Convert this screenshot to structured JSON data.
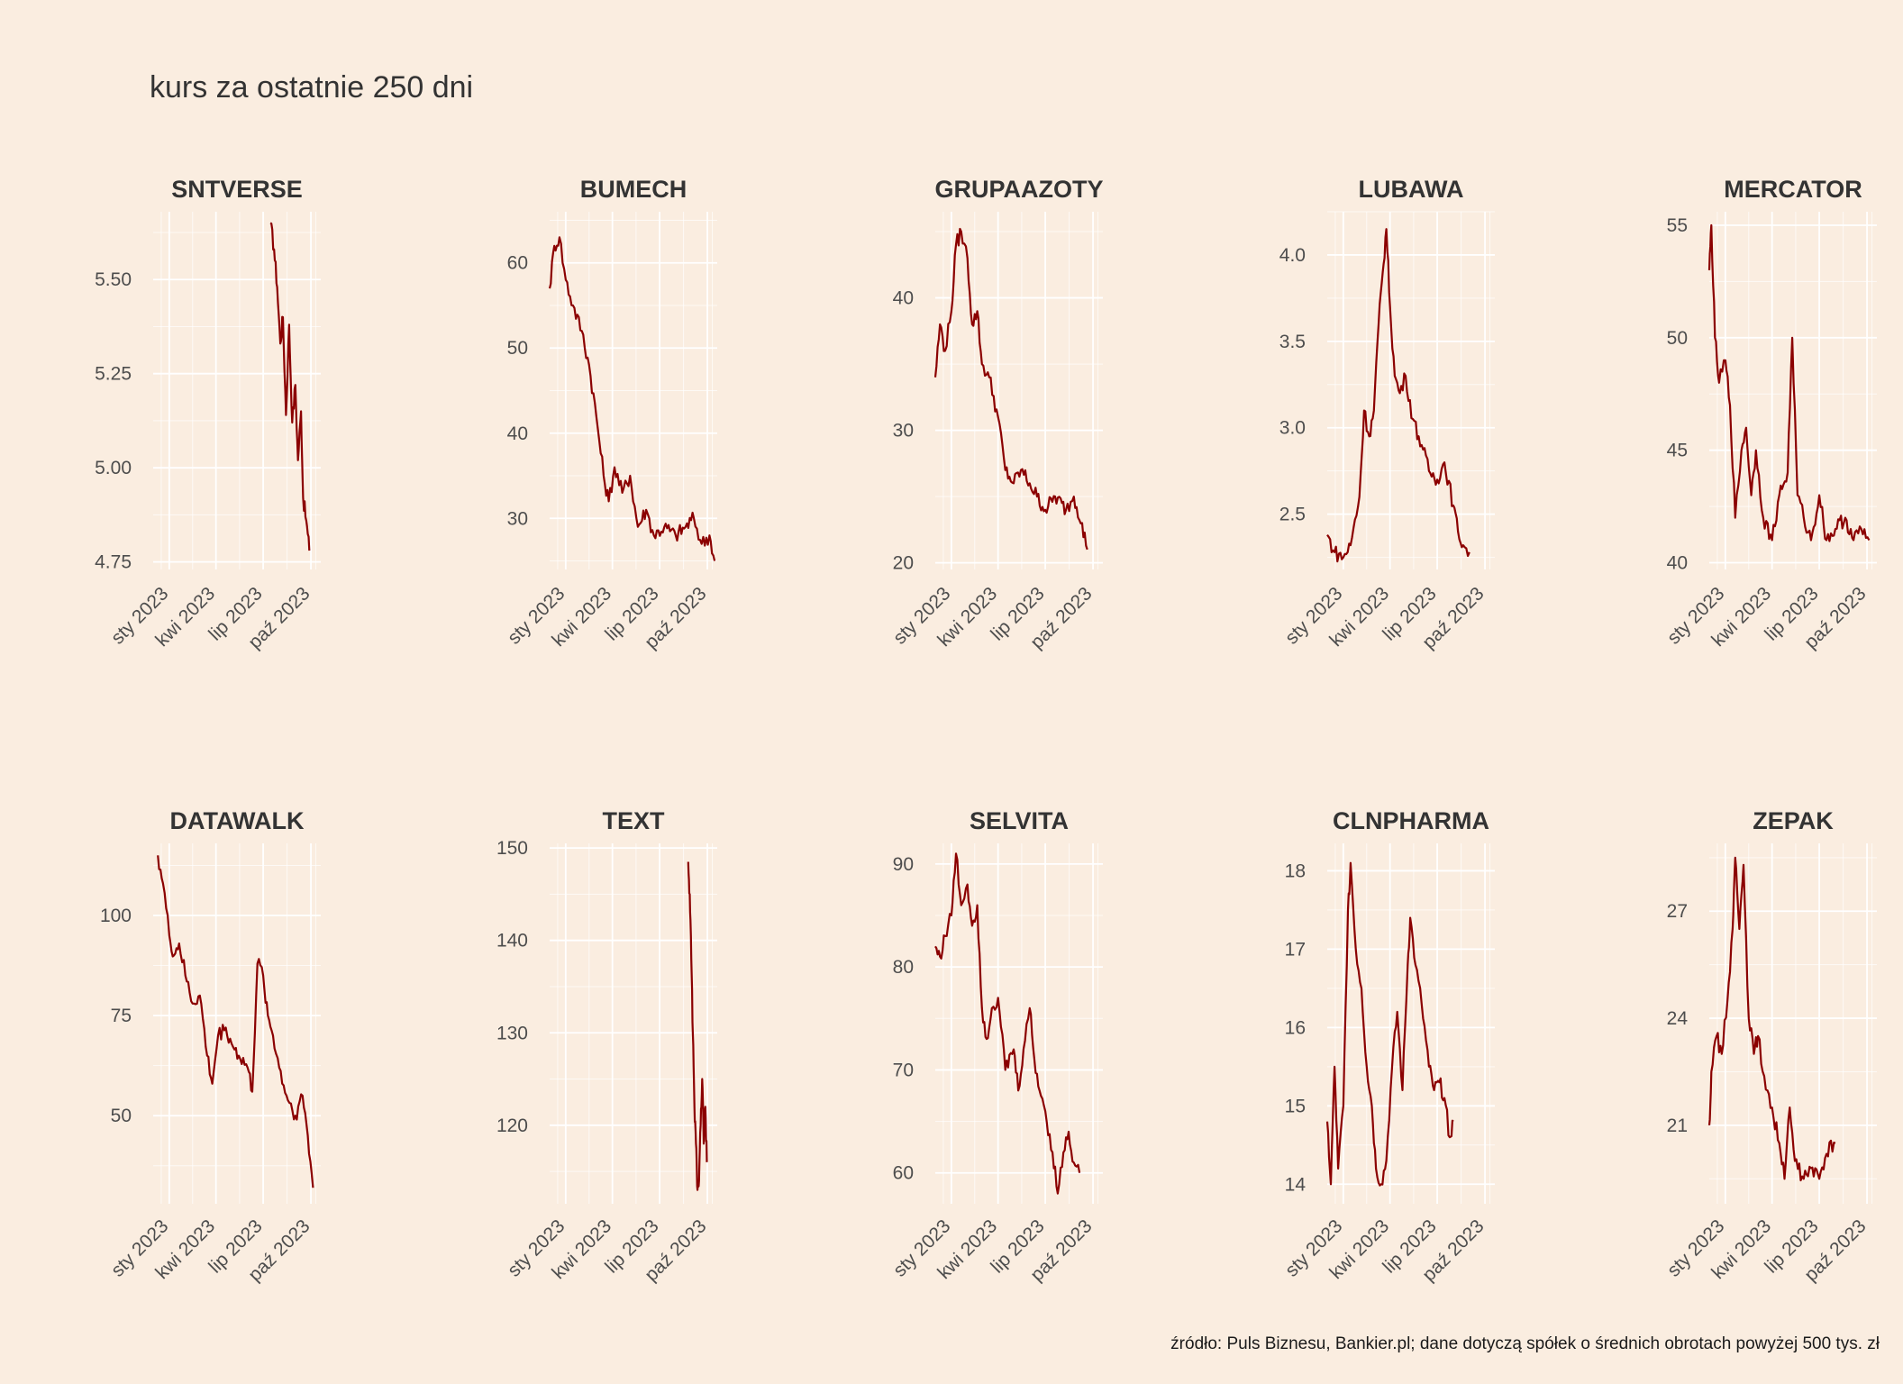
{
  "title": "kurs za ostatnie 250 dni",
  "caption": "źródło: Puls Biznesu, Bankier.pl; dane dotyczą spółek o średnich obrotach powyżej 500 tys. zł",
  "colors": {
    "background": "#FAEDE0",
    "line": "#8B0000",
    "grid": "#FFFFFF",
    "text": "#4D4D4D"
  },
  "chart_data": [
    {
      "type": "line",
      "title": "SNTVERSE",
      "x_ticks": [
        "sty 2023",
        "kwi 2023",
        "lip 2023",
        "paź 2023"
      ],
      "x_tick_dates": [
        "2023-01-01",
        "2023-04-01",
        "2023-07-01",
        "2023-10-01"
      ],
      "y_ticks": [
        4.75,
        5.0,
        5.25,
        5.5
      ],
      "y_tick_labels": [
        "4.75",
        "5.00",
        "5.25",
        "5.50"
      ],
      "ylim": [
        4.73,
        5.68
      ],
      "points": [
        [
          "2023-07-15",
          5.65
        ],
        [
          "2023-07-22",
          5.58
        ],
        [
          "2023-07-28",
          5.48
        ],
        [
          "2023-08-03",
          5.33
        ],
        [
          "2023-08-08",
          5.4
        ],
        [
          "2023-08-14",
          5.14
        ],
        [
          "2023-08-20",
          5.38
        ],
        [
          "2023-08-26",
          5.12
        ],
        [
          "2023-09-01",
          5.22
        ],
        [
          "2023-09-06",
          5.02
        ],
        [
          "2023-09-12",
          5.15
        ],
        [
          "2023-09-16",
          4.92
        ],
        [
          "2023-09-22",
          4.86
        ],
        [
          "2023-09-28",
          4.78
        ]
      ]
    },
    {
      "type": "line",
      "title": "BUMECH",
      "x_ticks": [
        "sty 2023",
        "kwi 2023",
        "lip 2023",
        "paź 2023"
      ],
      "x_tick_dates": [
        "2023-01-01",
        "2023-04-01",
        "2023-07-01",
        "2023-10-01"
      ],
      "y_ticks": [
        30,
        40,
        50,
        60
      ],
      "y_tick_labels": [
        "30",
        "40",
        "50",
        "60"
      ],
      "ylim": [
        24,
        66
      ],
      "points": [
        [
          "2022-12-01",
          57
        ],
        [
          "2022-12-10",
          62
        ],
        [
          "2022-12-20",
          63
        ],
        [
          "2023-01-01",
          58
        ],
        [
          "2023-01-15",
          55
        ],
        [
          "2023-02-01",
          52
        ],
        [
          "2023-02-15",
          48
        ],
        [
          "2023-03-01",
          42
        ],
        [
          "2023-03-15",
          35
        ],
        [
          "2023-03-25",
          32
        ],
        [
          "2023-04-05",
          36
        ],
        [
          "2023-04-20",
          33
        ],
        [
          "2023-05-05",
          35
        ],
        [
          "2023-05-20",
          29
        ],
        [
          "2023-06-05",
          31
        ],
        [
          "2023-06-20",
          28
        ],
        [
          "2023-07-10",
          29
        ],
        [
          "2023-08-01",
          28
        ],
        [
          "2023-08-20",
          29
        ],
        [
          "2023-09-05",
          30
        ],
        [
          "2023-09-20",
          27
        ],
        [
          "2023-10-05",
          28
        ],
        [
          "2023-10-15",
          25
        ]
      ]
    },
    {
      "type": "line",
      "title": "GRUPAAZOTY",
      "x_ticks": [
        "sty 2023",
        "kwi 2023",
        "lip 2023",
        "paź 2023"
      ],
      "x_tick_dates": [
        "2023-01-01",
        "2023-04-01",
        "2023-07-01",
        "2023-10-01"
      ],
      "y_ticks": [
        20,
        30,
        40
      ],
      "y_tick_labels": [
        "20",
        "30",
        "40"
      ],
      "ylim": [
        19.5,
        46.5
      ],
      "points": [
        [
          "2022-12-01",
          34
        ],
        [
          "2022-12-10",
          38
        ],
        [
          "2022-12-20",
          36
        ],
        [
          "2023-01-01",
          39
        ],
        [
          "2023-01-10",
          44
        ],
        [
          "2023-01-20",
          45
        ],
        [
          "2023-02-01",
          43
        ],
        [
          "2023-02-10",
          38
        ],
        [
          "2023-02-20",
          39
        ],
        [
          "2023-03-01",
          35
        ],
        [
          "2023-03-15",
          34
        ],
        [
          "2023-04-01",
          31
        ],
        [
          "2023-04-15",
          27
        ],
        [
          "2023-05-01",
          26
        ],
        [
          "2023-05-15",
          27
        ],
        [
          "2023-06-01",
          26
        ],
        [
          "2023-06-15",
          25
        ],
        [
          "2023-07-01",
          24
        ],
        [
          "2023-07-20",
          25
        ],
        [
          "2023-08-10",
          24
        ],
        [
          "2023-08-25",
          25
        ],
        [
          "2023-09-10",
          23
        ],
        [
          "2023-09-20",
          21
        ]
      ]
    },
    {
      "type": "line",
      "title": "LUBAWA",
      "x_ticks": [
        "sty 2023",
        "kwi 2023",
        "lip 2023",
        "paź 2023"
      ],
      "x_tick_dates": [
        "2023-01-01",
        "2023-04-01",
        "2023-07-01",
        "2023-10-01"
      ],
      "y_ticks": [
        2.5,
        3.0,
        3.5,
        4.0
      ],
      "y_tick_labels": [
        "2.5",
        "3.0",
        "3.5",
        "4.0"
      ],
      "ylim": [
        2.18,
        4.25
      ],
      "points": [
        [
          "2022-12-01",
          2.38
        ],
        [
          "2022-12-15",
          2.28
        ],
        [
          "2023-01-01",
          2.25
        ],
        [
          "2023-01-15",
          2.32
        ],
        [
          "2023-02-01",
          2.6
        ],
        [
          "2023-02-10",
          3.1
        ],
        [
          "2023-02-20",
          2.95
        ],
        [
          "2023-03-01",
          3.1
        ],
        [
          "2023-03-10",
          3.6
        ],
        [
          "2023-03-18",
          3.9
        ],
        [
          "2023-03-25",
          4.15
        ],
        [
          "2023-04-01",
          3.7
        ],
        [
          "2023-04-10",
          3.3
        ],
        [
          "2023-04-20",
          3.2
        ],
        [
          "2023-05-01",
          3.3
        ],
        [
          "2023-05-15",
          3.05
        ],
        [
          "2023-06-01",
          2.9
        ],
        [
          "2023-06-15",
          2.75
        ],
        [
          "2023-07-01",
          2.7
        ],
        [
          "2023-07-15",
          2.8
        ],
        [
          "2023-08-01",
          2.55
        ],
        [
          "2023-08-10",
          2.4
        ],
        [
          "2023-08-20",
          2.32
        ],
        [
          "2023-09-01",
          2.28
        ]
      ]
    },
    {
      "type": "line",
      "title": "MERCATOR",
      "x_ticks": [
        "sty 2023",
        "kwi 2023",
        "lip 2023",
        "paź 2023"
      ],
      "x_tick_dates": [
        "2023-01-01",
        "2023-04-01",
        "2023-07-01",
        "2023-10-01"
      ],
      "y_ticks": [
        40,
        45,
        50,
        55
      ],
      "y_tick_labels": [
        "40",
        "45",
        "50",
        "55"
      ],
      "ylim": [
        39.7,
        55.6
      ],
      "points": [
        [
          "2022-12-01",
          53
        ],
        [
          "2022-12-05",
          55
        ],
        [
          "2022-12-12",
          50
        ],
        [
          "2022-12-20",
          48
        ],
        [
          "2023-01-01",
          49
        ],
        [
          "2023-01-10",
          47
        ],
        [
          "2023-01-20",
          42
        ],
        [
          "2023-02-01",
          45
        ],
        [
          "2023-02-10",
          46
        ],
        [
          "2023-02-20",
          43
        ],
        [
          "2023-03-01",
          45
        ],
        [
          "2023-03-15",
          42
        ],
        [
          "2023-04-01",
          41
        ],
        [
          "2023-04-15",
          43
        ],
        [
          "2023-05-01",
          44
        ],
        [
          "2023-05-10",
          50
        ],
        [
          "2023-05-20",
          43
        ],
        [
          "2023-06-01",
          42
        ],
        [
          "2023-06-15",
          41
        ],
        [
          "2023-07-01",
          43
        ],
        [
          "2023-07-15",
          41
        ],
        [
          "2023-08-01",
          41.5
        ],
        [
          "2023-08-20",
          42
        ],
        [
          "2023-09-05",
          41
        ],
        [
          "2023-09-20",
          41.5
        ],
        [
          "2023-10-05",
          41
        ]
      ]
    },
    {
      "type": "line",
      "title": "DATAWALK",
      "x_ticks": [
        "sty 2023",
        "kwi 2023",
        "lip 2023",
        "paź 2023"
      ],
      "x_tick_dates": [
        "2023-01-01",
        "2023-04-01",
        "2023-07-01",
        "2023-10-01"
      ],
      "y_ticks": [
        50,
        75,
        100
      ],
      "y_tick_labels": [
        "50",
        "75",
        "100"
      ],
      "ylim": [
        28,
        118
      ],
      "points": [
        [
          "2022-12-10",
          115
        ],
        [
          "2022-12-20",
          108
        ],
        [
          "2023-01-01",
          95
        ],
        [
          "2023-01-10",
          90
        ],
        [
          "2023-01-20",
          93
        ],
        [
          "2023-02-01",
          85
        ],
        [
          "2023-02-15",
          78
        ],
        [
          "2023-03-01",
          80
        ],
        [
          "2023-03-15",
          65
        ],
        [
          "2023-03-25",
          58
        ],
        [
          "2023-04-05",
          70
        ],
        [
          "2023-04-20",
          72
        ],
        [
          "2023-05-01",
          68
        ],
        [
          "2023-05-15",
          65
        ],
        [
          "2023-06-01",
          62
        ],
        [
          "2023-06-10",
          56
        ],
        [
          "2023-06-20",
          88
        ],
        [
          "2023-07-01",
          85
        ],
        [
          "2023-07-10",
          75
        ],
        [
          "2023-07-20",
          70
        ],
        [
          "2023-08-01",
          62
        ],
        [
          "2023-08-15",
          55
        ],
        [
          "2023-09-01",
          50
        ],
        [
          "2023-09-15",
          55
        ],
        [
          "2023-09-25",
          45
        ],
        [
          "2023-10-05",
          32
        ]
      ]
    },
    {
      "type": "line",
      "title": "TEXT",
      "x_ticks": [
        "sty 2023",
        "kwi 2023",
        "lip 2023",
        "paź 2023"
      ],
      "x_tick_dates": [
        "2023-01-01",
        "2023-04-01",
        "2023-07-01",
        "2023-10-01"
      ],
      "y_ticks": [
        120,
        130,
        140,
        150
      ],
      "y_tick_labels": [
        "120",
        "130",
        "140",
        "150"
      ],
      "ylim": [
        111.5,
        150.5
      ],
      "points": [
        [
          "2023-08-25",
          148.5
        ],
        [
          "2023-08-28",
          145
        ],
        [
          "2023-08-31",
          138
        ],
        [
          "2023-09-03",
          130
        ],
        [
          "2023-09-06",
          122
        ],
        [
          "2023-09-09",
          118
        ],
        [
          "2023-09-12",
          113
        ],
        [
          "2023-09-15",
          114
        ],
        [
          "2023-09-18",
          120
        ],
        [
          "2023-09-21",
          125
        ],
        [
          "2023-09-24",
          118
        ],
        [
          "2023-09-27",
          122
        ],
        [
          "2023-09-30",
          116
        ]
      ]
    },
    {
      "type": "line",
      "title": "SELVITA",
      "x_ticks": [
        "sty 2023",
        "kwi 2023",
        "lip 2023",
        "paź 2023"
      ],
      "x_tick_dates": [
        "2023-01-01",
        "2023-04-01",
        "2023-07-01",
        "2023-10-01"
      ],
      "y_ticks": [
        60,
        70,
        80,
        90
      ],
      "y_tick_labels": [
        "60",
        "70",
        "80",
        "90"
      ],
      "ylim": [
        57,
        92
      ],
      "points": [
        [
          "2022-12-01",
          82
        ],
        [
          "2022-12-10",
          81
        ],
        [
          "2022-12-20",
          83
        ],
        [
          "2023-01-01",
          85
        ],
        [
          "2023-01-10",
          91
        ],
        [
          "2023-01-20",
          86
        ],
        [
          "2023-02-01",
          88
        ],
        [
          "2023-02-10",
          84
        ],
        [
          "2023-02-20",
          86
        ],
        [
          "2023-03-01",
          76
        ],
        [
          "2023-03-10",
          73
        ],
        [
          "2023-03-20",
          76
        ],
        [
          "2023-04-01",
          77
        ],
        [
          "2023-04-15",
          70
        ],
        [
          "2023-05-01",
          72
        ],
        [
          "2023-05-10",
          68
        ],
        [
          "2023-05-20",
          72
        ],
        [
          "2023-06-01",
          76
        ],
        [
          "2023-06-10",
          71
        ],
        [
          "2023-06-20",
          68
        ],
        [
          "2023-07-01",
          66
        ],
        [
          "2023-07-15",
          62
        ],
        [
          "2023-07-25",
          58
        ],
        [
          "2023-08-05",
          62
        ],
        [
          "2023-08-15",
          64
        ],
        [
          "2023-08-25",
          61
        ],
        [
          "2023-09-05",
          60
        ]
      ]
    },
    {
      "type": "line",
      "title": "CLNPHARMA",
      "x_ticks": [
        "sty 2023",
        "kwi 2023",
        "lip 2023",
        "paź 2023"
      ],
      "x_tick_dates": [
        "2023-01-01",
        "2023-04-01",
        "2023-07-01",
        "2023-10-01"
      ],
      "y_ticks": [
        14,
        15,
        16,
        17,
        18
      ],
      "y_tick_labels": [
        "14",
        "15",
        "16",
        "17",
        "18"
      ],
      "ylim": [
        13.75,
        18.35
      ],
      "points": [
        [
          "2022-12-01",
          14.8
        ],
        [
          "2022-12-08",
          14.0
        ],
        [
          "2022-12-15",
          15.5
        ],
        [
          "2022-12-22",
          14.2
        ],
        [
          "2023-01-01",
          15.0
        ],
        [
          "2023-01-10",
          17.5
        ],
        [
          "2023-01-15",
          18.1
        ],
        [
          "2023-01-25",
          17.0
        ],
        [
          "2023-02-05",
          16.5
        ],
        [
          "2023-02-15",
          15.5
        ],
        [
          "2023-02-25",
          15.0
        ],
        [
          "2023-03-05",
          14.2
        ],
        [
          "2023-03-15",
          14.0
        ],
        [
          "2023-03-25",
          14.3
        ],
        [
          "2023-04-05",
          15.5
        ],
        [
          "2023-04-15",
          16.2
        ],
        [
          "2023-04-25",
          15.2
        ],
        [
          "2023-05-05",
          16.8
        ],
        [
          "2023-05-10",
          17.4
        ],
        [
          "2023-05-20",
          16.8
        ],
        [
          "2023-06-01",
          16.3
        ],
        [
          "2023-06-15",
          15.5
        ],
        [
          "2023-06-25",
          15.2
        ],
        [
          "2023-07-05",
          15.3
        ],
        [
          "2023-07-15",
          15.1
        ],
        [
          "2023-07-25",
          14.6
        ],
        [
          "2023-08-01",
          14.8
        ]
      ]
    },
    {
      "type": "line",
      "title": "ZEPAK",
      "x_ticks": [
        "sty 2023",
        "kwi 2023",
        "lip 2023",
        "paź 2023"
      ],
      "x_tick_dates": [
        "2023-01-01",
        "2023-04-01",
        "2023-07-01",
        "2023-10-01"
      ],
      "y_ticks": [
        21,
        24,
        27
      ],
      "y_tick_labels": [
        "21",
        "24",
        "27"
      ],
      "ylim": [
        18.8,
        28.9
      ],
      "points": [
        [
          "2022-12-01",
          21
        ],
        [
          "2022-12-05",
          22.5
        ],
        [
          "2022-12-15",
          23.5
        ],
        [
          "2022-12-25",
          23
        ],
        [
          "2023-01-05",
          24.5
        ],
        [
          "2023-01-15",
          26.5
        ],
        [
          "2023-01-20",
          28.5
        ],
        [
          "2023-01-28",
          26.5
        ],
        [
          "2023-02-05",
          28.3
        ],
        [
          "2023-02-15",
          24
        ],
        [
          "2023-02-25",
          23
        ],
        [
          "2023-03-05",
          23.5
        ],
        [
          "2023-03-20",
          22
        ],
        [
          "2023-04-01",
          21.5
        ],
        [
          "2023-04-15",
          20.5
        ],
        [
          "2023-04-25",
          19.5
        ],
        [
          "2023-05-05",
          21.5
        ],
        [
          "2023-05-15",
          20
        ],
        [
          "2023-06-01",
          19.5
        ],
        [
          "2023-06-15",
          19.8
        ],
        [
          "2023-07-01",
          19.5
        ],
        [
          "2023-07-15",
          20.2
        ],
        [
          "2023-08-01",
          20.5
        ]
      ]
    }
  ]
}
